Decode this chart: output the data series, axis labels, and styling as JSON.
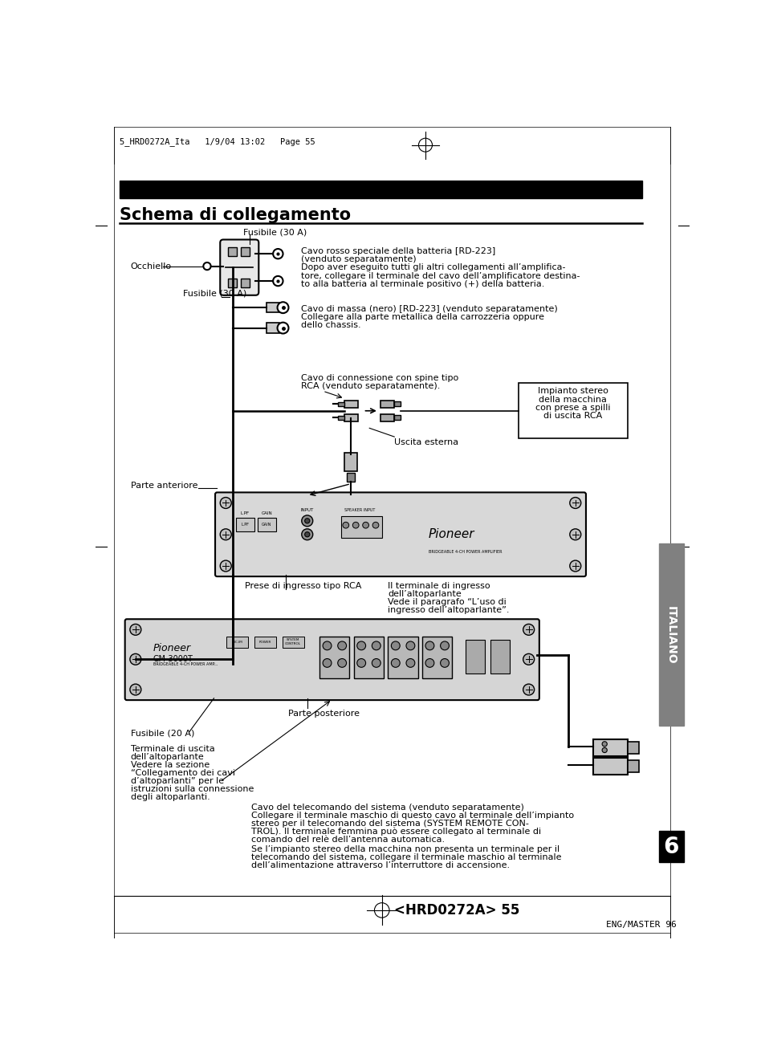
{
  "page_header": "5_HRD0272A_Ita   1/9/04 13:02   Page 55",
  "title": "Schema di collegamento",
  "bg_color": "#ffffff",
  "label_fusibile_top": "Fusibile (30 A)",
  "label_occhiello": "Occhiello",
  "label_fusibile_mid": "Fusibile (30 A)",
  "label_cavo_rosso_title": "Cavo rosso speciale della batteria [RD-223]",
  "label_cavo_rosso_1": "(venduto separatamente)",
  "label_cavo_rosso_2": "Dopo aver eseguito tutti gli altri collegamenti all’amplifica-",
  "label_cavo_rosso_3": "tore, collegare il terminale del cavo dell’amplificatore destina-",
  "label_cavo_rosso_4": "to alla batteria al terminale positivo (+) della batteria.",
  "label_cavo_massa_1": "Cavo di massa (nero) [RD-223] (venduto separatamente)",
  "label_cavo_massa_2": "Collegare alla parte metallica della carrozzeria oppure",
  "label_cavo_massa_3": "dello chassis.",
  "label_cavo_rca_1": "Cavo di connessione con spine tipo",
  "label_cavo_rca_2": "RCA (venduto separatamente).",
  "label_impianto_1": "Impianto stereo",
  "label_impianto_2": "della macchina",
  "label_impianto_3": "con prese a spilli",
  "label_impianto_4": "di uscita RCA",
  "label_uscita": "Uscita esterna",
  "label_parte_anteriore": "Parte anteriore",
  "label_prese": "Prese di ingresso tipo RCA",
  "label_terminale_1": "Il terminale di ingresso",
  "label_terminale_2": "dell’altoparlante",
  "label_terminale_3": "Vede il paragrafo “L’uso di",
  "label_terminale_4": "ingresso dell’altoparlante”.",
  "label_parte_posteriore": "Parte posteriore",
  "label_fusibile_bottom": "Fusibile (20 A)",
  "label_terminale_uscita_1": "Terminale di uscita",
  "label_terminale_uscita_2": "dell’altoparlante",
  "label_terminale_uscita_3": "Vedere la sezione",
  "label_terminale_uscita_4": "“Collegamento dei cavi",
  "label_terminale_uscita_5": "d’altoparlanti” per le",
  "label_terminale_uscita_6": "istruzioni sulla connessione",
  "label_terminale_uscita_7": "degli altoparlanti.",
  "label_cavo_tel_1": "Cavo del telecomando del sistema (venduto separatamente)",
  "label_cavo_tel_2": "Collegare il terminale maschio di questo cavo al terminale dell’impianto",
  "label_cavo_tel_3": "stereo per il telecomando del sistema (SYSTEM REMOTE CON-",
  "label_cavo_tel_4": "TROL). Il terminale femmina può essere collegato al terminale di",
  "label_cavo_tel_5": "comando del relè dell’antenna automatica.",
  "label_cavo_tel_6": "Se l’impianto stereo della macchina non presenta un terminale per il",
  "label_cavo_tel_7": "telecomando del sistema, collegare il terminale maschio al terminale",
  "label_cavo_tel_8": "dell’alimentazione attraverso l’interruttore di accensione.",
  "page_number": "<HRD0272A> 55",
  "eng_master": "ENG/MASTER 96",
  "italiano_label": "ITALIANO",
  "section_number": "6"
}
